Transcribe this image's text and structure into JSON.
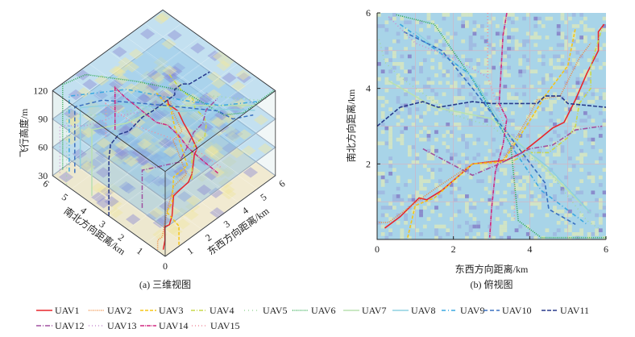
{
  "chart_data": [
    {
      "type": "line",
      "id": "panel-a",
      "caption": "(a)  三维视图",
      "xlabel": "东西方向距离/km",
      "ylabel": "南北方向距离/km",
      "zlabel": "飞行高度/m",
      "xticks": [
        "0",
        "1",
        "2",
        "3",
        "4",
        "5",
        "6"
      ],
      "yticks": [
        "1",
        "2",
        "3",
        "4",
        "5",
        "6"
      ],
      "zticks": [
        "30",
        "60",
        "90",
        "120"
      ],
      "xlim": [
        0,
        6
      ],
      "ylim": [
        0,
        6
      ],
      "zlim": [
        30,
        120
      ],
      "layers_z": [
        30,
        60,
        90,
        120
      ],
      "grid": true
    },
    {
      "type": "line",
      "id": "panel-b",
      "caption": "(b)  俯视图",
      "xlabel": "东西方向距离/km",
      "ylabel": "南北方向距离/km",
      "xticks": [
        "0",
        "2",
        "4",
        "6"
      ],
      "yticks": [
        "2",
        "4",
        "6"
      ],
      "xlim": [
        0,
        6
      ],
      "ylim": [
        0,
        6
      ],
      "grid": true
    }
  ],
  "series": [
    {
      "name": "UAV1",
      "color": "#e8262b",
      "dash": "",
      "alt": 30,
      "points": [
        [
          0.2,
          0.3
        ],
        [
          0.6,
          0.6
        ],
        [
          1.1,
          1.1
        ],
        [
          1.3,
          1.05
        ],
        [
          1.7,
          1.3
        ],
        [
          2.5,
          2.0
        ],
        [
          2.9,
          2.05
        ],
        [
          3.4,
          2.1
        ],
        [
          3.8,
          2.3
        ],
        [
          4.3,
          2.7
        ],
        [
          4.6,
          2.95
        ],
        [
          4.9,
          3.1
        ],
        [
          5.2,
          3.7
        ],
        [
          5.5,
          4.4
        ],
        [
          5.8,
          5.0
        ],
        [
          5.8,
          5.5
        ],
        [
          5.95,
          5.7
        ]
      ]
    },
    {
      "name": "UAV2",
      "color": "#f0883a",
      "dash": "1 1.5",
      "alt": 40,
      "points": [
        [
          0.05,
          0.45
        ],
        [
          0.3,
          0.45
        ],
        [
          0.9,
          0.9
        ],
        [
          1.6,
          1.4
        ],
        [
          2.5,
          2.0
        ],
        [
          3.3,
          2.1
        ],
        [
          4.0,
          3.3
        ],
        [
          4.2,
          3.7
        ],
        [
          4.8,
          3.8
        ],
        [
          5.3,
          4.8
        ],
        [
          5.6,
          5.2
        ]
      ]
    },
    {
      "name": "UAV3",
      "color": "#f5c518",
      "dash": "4 2",
      "alt": 50,
      "points": [
        [
          0.8,
          0.05
        ],
        [
          1.0,
          0.9
        ],
        [
          1.5,
          1.1
        ],
        [
          2.5,
          2.0
        ],
        [
          3.3,
          2.05
        ],
        [
          4.1,
          3.3
        ],
        [
          4.4,
          3.8
        ],
        [
          5.0,
          4.6
        ],
        [
          5.2,
          5.6
        ]
      ]
    },
    {
      "name": "UAV4",
      "color": "#c8d84a",
      "dash": "5 2 1 2",
      "alt": 60,
      "points": [
        [
          3.6,
          2.1
        ],
        [
          4.0,
          2.3
        ],
        [
          4.5,
          2.3
        ],
        [
          5.0,
          2.7
        ],
        [
          5.2,
          3.0
        ],
        [
          5.3,
          3.6
        ],
        [
          5.6,
          4.0
        ],
        [
          5.6,
          4.6
        ],
        [
          5.9,
          5.6
        ]
      ]
    },
    {
      "name": "UAV5",
      "color": "#9fd8a0",
      "dash": "1 4",
      "alt": 110,
      "points": [
        [
          0.05,
          5.3
        ],
        [
          0.2,
          4.7
        ],
        [
          0.6,
          4.3
        ],
        [
          2.0,
          3.3
        ],
        [
          3.0,
          3.0
        ],
        [
          4.5,
          1.8
        ],
        [
          5.5,
          0.5
        ],
        [
          5.8,
          0.3
        ]
      ]
    },
    {
      "name": "UAV6",
      "color": "#2aa84a",
      "dash": "1 1.5",
      "alt": 120,
      "points": [
        [
          0.5,
          5.95
        ],
        [
          1.5,
          5.7
        ],
        [
          2.6,
          4.1
        ],
        [
          3.5,
          2.5
        ],
        [
          3.7,
          0.5
        ],
        [
          4.3,
          0.05
        ],
        [
          6.0,
          0.05
        ]
      ]
    },
    {
      "name": "UAV7",
      "color": "#b8e0b0",
      "dash": "",
      "alt": 100,
      "points": [
        [
          0.3,
          4.2
        ],
        [
          1.5,
          3.5
        ],
        [
          3.0,
          3.2
        ],
        [
          4.0,
          2.3
        ],
        [
          5.6,
          0.7
        ]
      ]
    },
    {
      "name": "UAV8",
      "color": "#8ed0e0",
      "dash": "",
      "alt": 95,
      "points": [
        [
          1.0,
          5.5
        ],
        [
          2.5,
          4.3
        ],
        [
          3.5,
          2.7
        ],
        [
          4.5,
          1.9
        ],
        [
          5.6,
          0.7
        ]
      ]
    },
    {
      "name": "UAV9",
      "color": "#3aa8e0",
      "dash": "5 3 1 3",
      "alt": 110,
      "points": [
        [
          0.6,
          5.7
        ],
        [
          2.4,
          4.4
        ],
        [
          3.5,
          2.5
        ],
        [
          4.3,
          1.3
        ],
        [
          5.5,
          0.4
        ]
      ]
    },
    {
      "name": "UAV10",
      "color": "#3a70c0",
      "dash": "5 3",
      "alt": 100,
      "points": [
        [
          0.7,
          5.5
        ],
        [
          1.7,
          5.0
        ],
        [
          2.5,
          4.0
        ],
        [
          3.5,
          2.7
        ],
        [
          4.4,
          1.5
        ],
        [
          4.5,
          0.8
        ],
        [
          5.2,
          0.4
        ]
      ]
    },
    {
      "name": "UAV11",
      "color": "#283a8c",
      "dash": "5 2",
      "alt": 90,
      "points": [
        [
          0.0,
          3.0
        ],
        [
          0.6,
          3.5
        ],
        [
          1.2,
          3.65
        ],
        [
          1.6,
          3.5
        ],
        [
          2.5,
          3.65
        ],
        [
          3.0,
          3.6
        ],
        [
          4.2,
          3.6
        ],
        [
          4.4,
          3.8
        ],
        [
          4.8,
          3.8
        ],
        [
          5.0,
          3.6
        ],
        [
          6.0,
          3.5
        ]
      ]
    },
    {
      "name": "UAV12",
      "color": "#a050a0",
      "dash": "6 2 1 2",
      "alt": 70,
      "points": [
        [
          1.2,
          2.4
        ],
        [
          2.5,
          1.7
        ],
        [
          3.2,
          2.0
        ],
        [
          4.0,
          2.4
        ],
        [
          4.6,
          2.5
        ],
        [
          5.2,
          2.9
        ],
        [
          5.9,
          3.0
        ]
      ]
    },
    {
      "name": "UAV13",
      "color": "#c890d0",
      "dash": "1 3",
      "alt": 80,
      "points": [
        [
          0.3,
          5.9
        ],
        [
          1.0,
          5.2
        ],
        [
          2.0,
          4.8
        ],
        [
          2.9,
          4.3
        ]
      ]
    },
    {
      "name": "UAV14",
      "color": "#d02880",
      "dash": "5 1 1 1",
      "alt": 75,
      "points": [
        [
          3.4,
          6.0
        ],
        [
          3.3,
          5.4
        ],
        [
          3.2,
          3.6
        ],
        [
          3.4,
          3.2
        ],
        [
          3.3,
          2.5
        ],
        [
          3.1,
          1.8
        ],
        [
          3.0,
          0.8
        ],
        [
          2.95,
          0.05
        ]
      ]
    },
    {
      "name": "UAV15",
      "color": "#f090a0",
      "dash": "1 3",
      "alt": 65,
      "points": [
        [
          2.9,
          6.0
        ],
        [
          2.9,
          4.3
        ],
        [
          3.0,
          4.0
        ],
        [
          3.2,
          3.4
        ],
        [
          3.5,
          2.6
        ],
        [
          3.6,
          2.0
        ],
        [
          3.6,
          0.5
        ]
      ]
    }
  ]
}
